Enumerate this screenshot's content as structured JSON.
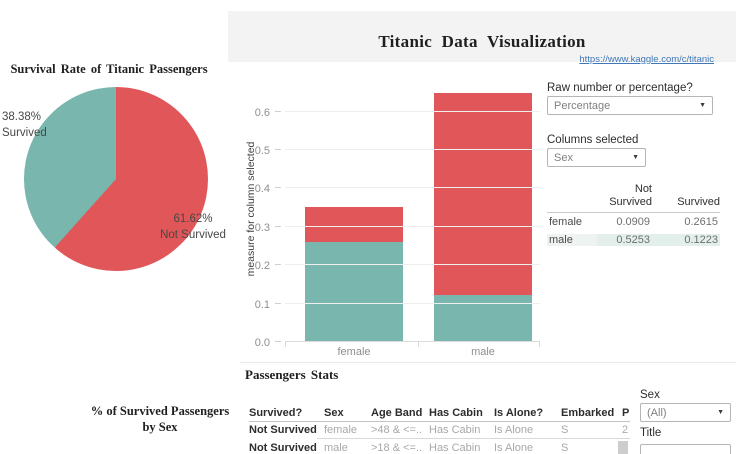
{
  "header": {
    "title": "Titanic Data Visualization",
    "link_text": "https://www.kaggle.com/c/titanic"
  },
  "pie_panel": {
    "title": "Survival Rate of Titanic Passengers",
    "label_survived_lines": [
      "38.38%",
      "Survived"
    ],
    "label_not_survived_lines": [
      "61.62%",
      "Not Survived"
    ]
  },
  "controls": {
    "measure_label": "Raw number or percentage?",
    "measure_value": "Percentage",
    "columns_label": "Columns selected",
    "columns_value": "Sex"
  },
  "summary_table": {
    "columns": [
      "Not Survived",
      "Survived"
    ],
    "rows": [
      {
        "name": "female",
        "not_survived": "0.0909",
        "survived": "0.2615"
      },
      {
        "name": "male",
        "not_survived": "0.5253",
        "survived": "0.1223"
      }
    ]
  },
  "passengers": {
    "heading": "Passengers Stats",
    "columns": [
      "Survived?",
      "Sex",
      "Age Band",
      "Has Cabin",
      "Is Alone?",
      "Embarked",
      "P"
    ],
    "rows": [
      [
        "Not Survived",
        "female",
        ">48 & <=..",
        "Has Cabin",
        "Is Alone",
        "S",
        "2"
      ],
      [
        "Not Survived",
        "male",
        ">18 & <=..",
        "Has Cabin",
        "Is Alone",
        "S",
        ""
      ]
    ]
  },
  "filters": {
    "sex_label": "Sex",
    "sex_value": "(All)",
    "title_label": "Title"
  },
  "bottom_left": {
    "title_lines": [
      "% of Survived Passengers",
      "by Sex"
    ]
  },
  "colors": {
    "survived_teal": "#78b6ae",
    "not_survived_red": "#e15659",
    "row_highlight": "#e3efeb",
    "header_band": "#f3f3f3",
    "link_blue": "#4077b8"
  },
  "chart_data": [
    {
      "type": "pie",
      "title": "Survival Rate of Titanic Passengers",
      "slices": [
        {
          "label": "Not Survived",
          "value": 61.62,
          "color": "#e15659"
        },
        {
          "label": "Survived",
          "value": 38.38,
          "color": "#78b6ae"
        }
      ],
      "start_angle_deg": 0,
      "direction": "clockwise",
      "legend_position": "none"
    },
    {
      "type": "stacked_bar",
      "categories": [
        "female",
        "male"
      ],
      "series": [
        {
          "name": "Survived",
          "color": "#78b6ae",
          "values": [
            0.2615,
            0.1223
          ]
        },
        {
          "name": "Not Survived",
          "color": "#e15659",
          "values": [
            0.0909,
            0.5253
          ]
        }
      ],
      "xlabel": "",
      "ylabel": "measure for column selected",
      "yticks": [
        0,
        0.1,
        0.2,
        0.3,
        0.4,
        0.5,
        0.6
      ],
      "ylim": [
        0,
        0.67
      ],
      "grid": true,
      "legend_position": "none"
    }
  ]
}
